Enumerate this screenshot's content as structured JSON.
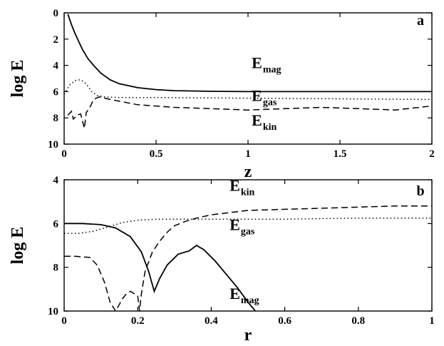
{
  "chart_data": [
    {
      "type": "line",
      "panel_label": "a",
      "xlabel": "z",
      "ylabel": "log E",
      "xlim": [
        0,
        2
      ],
      "ylim": [
        0,
        10
      ],
      "y_inverted": true,
      "grid": false,
      "xticks": [
        0,
        0.5,
        1,
        1.5,
        2
      ],
      "xtick_labels": [
        "0",
        "0.5",
        "1",
        "1.5",
        "2"
      ],
      "yticks": [
        0,
        2,
        4,
        6,
        8,
        10
      ],
      "ytick_labels": [
        "0",
        "2",
        "4",
        "6",
        "8",
        "10"
      ],
      "series": [
        {
          "key": "mag",
          "style": "solid",
          "x": [
            0.02,
            0.04,
            0.06,
            0.08,
            0.1,
            0.13,
            0.16,
            0.2,
            0.25,
            0.3,
            0.4,
            0.5,
            0.6,
            0.8,
            1.0,
            1.2,
            1.5,
            1.8,
            2.0
          ],
          "y": [
            0.1,
            0.9,
            1.6,
            2.2,
            2.8,
            3.5,
            4.0,
            4.6,
            5.1,
            5.4,
            5.7,
            5.85,
            5.93,
            5.98,
            6.0,
            6.0,
            6.0,
            6.0,
            6.0
          ]
        },
        {
          "key": "gas",
          "style": "dotted",
          "x": [
            0.0,
            0.03,
            0.06,
            0.09,
            0.12,
            0.15,
            0.18,
            0.22,
            0.3,
            0.5,
            1.0,
            1.5,
            2.0
          ],
          "y": [
            6.2,
            5.5,
            5.15,
            5.1,
            5.4,
            6.0,
            6.3,
            6.4,
            6.45,
            6.45,
            6.5,
            6.55,
            6.6
          ]
        },
        {
          "key": "kin",
          "style": "dashed",
          "x": [
            0.02,
            0.04,
            0.05,
            0.07,
            0.09,
            0.11,
            0.12,
            0.14,
            0.16,
            0.19,
            0.25,
            0.4,
            0.6,
            0.8,
            1.0,
            1.2,
            1.4,
            1.6,
            1.8,
            2.0
          ],
          "y": [
            7.8,
            7.5,
            8.1,
            7.8,
            7.7,
            8.8,
            7.6,
            7.2,
            6.6,
            6.4,
            6.6,
            7.0,
            7.2,
            7.3,
            7.4,
            7.3,
            7.2,
            7.3,
            7.4,
            7.1
          ]
        }
      ],
      "annotations": [
        {
          "key": "mag",
          "text": "E",
          "sub": "mag",
          "x": 1.02,
          "y": 4.2
        },
        {
          "key": "gas",
          "text": "E",
          "sub": "gas",
          "x": 1.02,
          "y": 6.7
        },
        {
          "key": "kin",
          "text": "E",
          "sub": "kin",
          "x": 1.02,
          "y": 8.6
        }
      ]
    },
    {
      "type": "line",
      "panel_label": "b",
      "xlabel": "r",
      "ylabel": "log E",
      "xlim": [
        0,
        1
      ],
      "ylim": [
        4,
        10
      ],
      "y_inverted": true,
      "grid": false,
      "xticks": [
        0,
        0.2,
        0.4,
        0.6,
        0.8,
        1
      ],
      "xtick_labels": [
        "0",
        "0.2",
        "0.4",
        "0.6",
        "0.8",
        "1"
      ],
      "yticks": [
        4,
        6,
        8,
        10
      ],
      "ytick_labels": [
        "4",
        "6",
        "8",
        "10"
      ],
      "series": [
        {
          "key": "mag",
          "style": "solid",
          "x": [
            0.0,
            0.05,
            0.1,
            0.14,
            0.18,
            0.21,
            0.23,
            0.245,
            0.26,
            0.28,
            0.31,
            0.34,
            0.36,
            0.38,
            0.41,
            0.44,
            0.47,
            0.5,
            0.52
          ],
          "y": [
            6.0,
            6.0,
            6.05,
            6.2,
            6.6,
            7.3,
            8.2,
            9.1,
            8.5,
            7.9,
            7.4,
            7.25,
            7.0,
            7.2,
            7.7,
            8.3,
            8.9,
            9.6,
            10.0
          ]
        },
        {
          "key": "gas",
          "style": "dotted",
          "x": [
            0.0,
            0.04,
            0.08,
            0.12,
            0.16,
            0.2,
            0.25,
            0.3,
            0.4,
            0.5,
            0.6,
            0.8,
            1.0
          ],
          "y": [
            6.45,
            6.45,
            6.35,
            6.15,
            5.95,
            5.85,
            5.8,
            5.8,
            5.8,
            5.8,
            5.8,
            5.75,
            5.75
          ]
        },
        {
          "key": "kin",
          "style": "dashed",
          "x": [
            0.0,
            0.03,
            0.07,
            0.09,
            0.11,
            0.125,
            0.14,
            0.15,
            0.16,
            0.17,
            0.18,
            0.2,
            0.205,
            0.21,
            0.22,
            0.24,
            0.26,
            0.28,
            0.3,
            0.33,
            0.36,
            0.4,
            0.45,
            0.5,
            0.6,
            0.7,
            0.8,
            0.9,
            1.0
          ],
          "y": [
            7.5,
            7.5,
            7.55,
            7.9,
            8.7,
            9.6,
            10.0,
            9.7,
            9.4,
            9.2,
            9.1,
            9.3,
            10.0,
            9.2,
            8.2,
            7.3,
            6.8,
            6.4,
            6.1,
            5.9,
            5.75,
            5.6,
            5.5,
            5.4,
            5.35,
            5.3,
            5.25,
            5.2,
            5.2
          ]
        }
      ],
      "annotations": [
        {
          "key": "kin",
          "text": "E",
          "sub": "kin",
          "x": 0.45,
          "y": 4.5
        },
        {
          "key": "gas",
          "text": "E",
          "sub": "gas",
          "x": 0.45,
          "y": 6.3
        },
        {
          "key": "mag",
          "text": "E",
          "sub": "mag",
          "x": 0.45,
          "y": 9.45
        }
      ]
    }
  ]
}
